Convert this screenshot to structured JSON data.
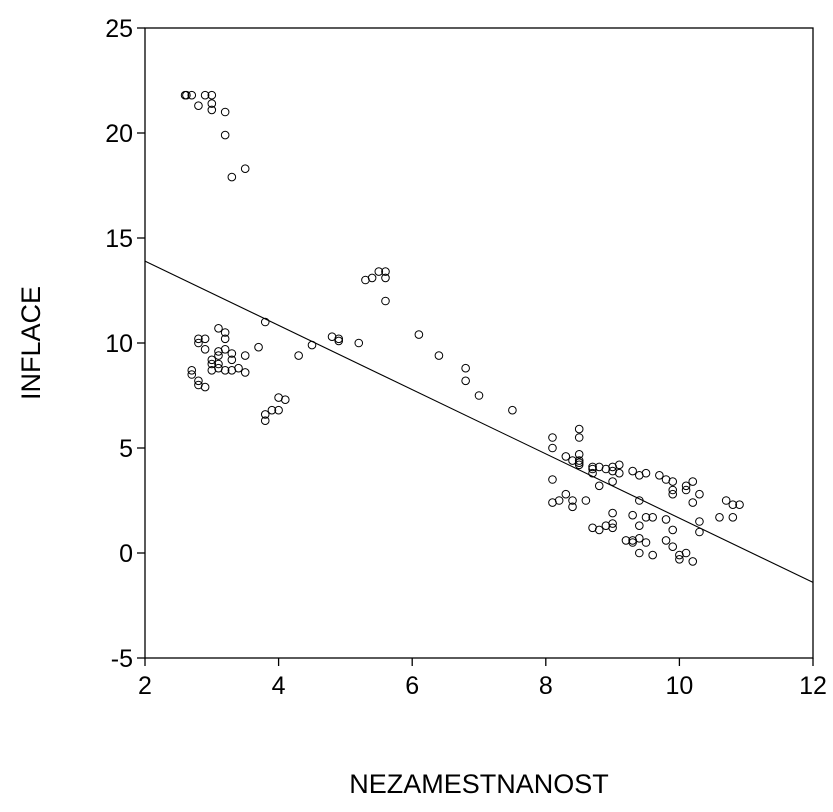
{
  "chart_data": {
    "type": "scatter",
    "title": "",
    "xlabel": "NEZAMESTNANOST",
    "ylabel": "INFLACE",
    "xlim": [
      2,
      12
    ],
    "ylim": [
      -5,
      25
    ],
    "x_ticks": [
      2,
      4,
      6,
      8,
      10,
      12
    ],
    "y_ticks": [
      -5,
      0,
      5,
      10,
      15,
      20,
      25
    ],
    "grid": false,
    "legend": "none",
    "marker": "hollow-circle",
    "points": [
      [
        2.6,
        21.8
      ],
      [
        2.62,
        21.8
      ],
      [
        2.7,
        21.8
      ],
      [
        2.8,
        21.3
      ],
      [
        2.9,
        21.8
      ],
      [
        3.0,
        21.8
      ],
      [
        3.0,
        21.4
      ],
      [
        3.0,
        21.1
      ],
      [
        3.2,
        21.0
      ],
      [
        3.2,
        19.9
      ],
      [
        3.3,
        17.9
      ],
      [
        3.5,
        18.3
      ],
      [
        2.7,
        8.7
      ],
      [
        2.7,
        8.5
      ],
      [
        2.8,
        8.2
      ],
      [
        2.8,
        8.0
      ],
      [
        2.8,
        10.0
      ],
      [
        2.8,
        10.2
      ],
      [
        2.9,
        10.2
      ],
      [
        2.9,
        9.7
      ],
      [
        2.9,
        7.9
      ],
      [
        3.0,
        9.2
      ],
      [
        3.0,
        9.0
      ],
      [
        3.0,
        8.7
      ],
      [
        3.1,
        10.7
      ],
      [
        3.1,
        9.6
      ],
      [
        3.1,
        9.4
      ],
      [
        3.1,
        9.0
      ],
      [
        3.1,
        8.8
      ],
      [
        3.2,
        10.5
      ],
      [
        3.2,
        10.2
      ],
      [
        3.2,
        9.7
      ],
      [
        3.2,
        8.7
      ],
      [
        3.3,
        9.5
      ],
      [
        3.3,
        9.2
      ],
      [
        3.3,
        8.7
      ],
      [
        3.4,
        8.8
      ],
      [
        3.5,
        9.4
      ],
      [
        3.5,
        8.6
      ],
      [
        3.7,
        9.8
      ],
      [
        3.8,
        11.0
      ],
      [
        3.8,
        6.6
      ],
      [
        3.8,
        6.3
      ],
      [
        3.9,
        6.8
      ],
      [
        4.0,
        6.8
      ],
      [
        4.0,
        7.4
      ],
      [
        4.1,
        7.3
      ],
      [
        4.3,
        9.4
      ],
      [
        4.5,
        9.9
      ],
      [
        4.8,
        10.3
      ],
      [
        4.9,
        10.1
      ],
      [
        4.9,
        10.2
      ],
      [
        5.2,
        10.0
      ],
      [
        5.3,
        13.0
      ],
      [
        5.4,
        13.1
      ],
      [
        5.5,
        13.4
      ],
      [
        5.6,
        13.4
      ],
      [
        5.6,
        13.1
      ],
      [
        5.6,
        12.0
      ],
      [
        6.1,
        10.4
      ],
      [
        6.4,
        9.4
      ],
      [
        6.8,
        8.8
      ],
      [
        6.8,
        8.2
      ],
      [
        7.0,
        7.5
      ],
      [
        7.5,
        6.8
      ],
      [
        8.1,
        5.5
      ],
      [
        8.1,
        5.0
      ],
      [
        8.1,
        3.5
      ],
      [
        8.1,
        2.4
      ],
      [
        8.2,
        2.5
      ],
      [
        8.3,
        4.6
      ],
      [
        8.3,
        2.8
      ],
      [
        8.4,
        4.4
      ],
      [
        8.4,
        2.5
      ],
      [
        8.4,
        2.2
      ],
      [
        8.5,
        5.9
      ],
      [
        8.5,
        5.5
      ],
      [
        8.5,
        4.7
      ],
      [
        8.5,
        4.4
      ],
      [
        8.5,
        4.3
      ],
      [
        8.5,
        4.2
      ],
      [
        8.6,
        2.5
      ],
      [
        8.7,
        4.1
      ],
      [
        8.7,
        4.0
      ],
      [
        8.7,
        3.8
      ],
      [
        8.7,
        1.2
      ],
      [
        8.8,
        4.1
      ],
      [
        8.8,
        3.2
      ],
      [
        8.8,
        1.1
      ],
      [
        8.9,
        4.0
      ],
      [
        8.9,
        1.3
      ],
      [
        9.0,
        4.1
      ],
      [
        9.0,
        3.9
      ],
      [
        9.0,
        3.4
      ],
      [
        9.0,
        1.9
      ],
      [
        9.0,
        1.4
      ],
      [
        9.0,
        1.2
      ],
      [
        9.1,
        4.2
      ],
      [
        9.1,
        3.8
      ],
      [
        9.2,
        0.6
      ],
      [
        9.3,
        3.9
      ],
      [
        9.3,
        1.8
      ],
      [
        9.3,
        0.6
      ],
      [
        9.3,
        0.5
      ],
      [
        9.4,
        3.7
      ],
      [
        9.4,
        2.5
      ],
      [
        9.4,
        1.3
      ],
      [
        9.4,
        0.7
      ],
      [
        9.4,
        0.0
      ],
      [
        9.5,
        3.8
      ],
      [
        9.5,
        1.7
      ],
      [
        9.5,
        0.5
      ],
      [
        9.6,
        1.7
      ],
      [
        9.6,
        -0.1
      ],
      [
        9.7,
        3.7
      ],
      [
        9.8,
        3.5
      ],
      [
        9.8,
        1.6
      ],
      [
        9.8,
        0.6
      ],
      [
        9.9,
        3.4
      ],
      [
        9.9,
        3.0
      ],
      [
        9.9,
        2.8
      ],
      [
        9.9,
        1.1
      ],
      [
        9.9,
        0.3
      ],
      [
        10.0,
        -0.1
      ],
      [
        10.0,
        -0.3
      ],
      [
        10.1,
        3.2
      ],
      [
        10.1,
        3.0
      ],
      [
        10.1,
        0.0
      ],
      [
        10.2,
        3.4
      ],
      [
        10.2,
        2.4
      ],
      [
        10.2,
        -0.4
      ],
      [
        10.3,
        2.8
      ],
      [
        10.3,
        1.5
      ],
      [
        10.3,
        1.0
      ],
      [
        10.6,
        1.7
      ],
      [
        10.7,
        2.5
      ],
      [
        10.8,
        2.3
      ],
      [
        10.8,
        1.7
      ],
      [
        10.9,
        2.3
      ]
    ],
    "regression_line": {
      "x": [
        2,
        12
      ],
      "y": [
        13.9,
        -1.4
      ]
    }
  }
}
